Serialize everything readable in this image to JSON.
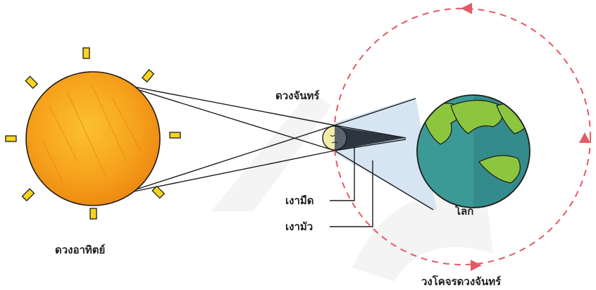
{
  "labels": {
    "sun": "ดวงอาทิตย์",
    "moon": "ดวงจันทร์",
    "earth": "โลก",
    "umbra": "เงามืด",
    "penumbra": "เงามัว",
    "orbit": "วงโคจรดวงจันทร์"
  },
  "colors": {
    "sun_core": "#f6a31c",
    "sun_edge": "#ee8a12",
    "sun_rays": "#f7d51f",
    "moon": "#f3eca8",
    "moon_dark": "#5a6370",
    "umbra": "#2c3440",
    "penumbra": "#cfe1ee",
    "ocean": "#3c9a96",
    "land": "#8cc63f",
    "orbit": "#e45a64",
    "outline": "#1c1c1c"
  },
  "icons": {
    "orbit_arrow": "triangle-arrow-icon"
  }
}
